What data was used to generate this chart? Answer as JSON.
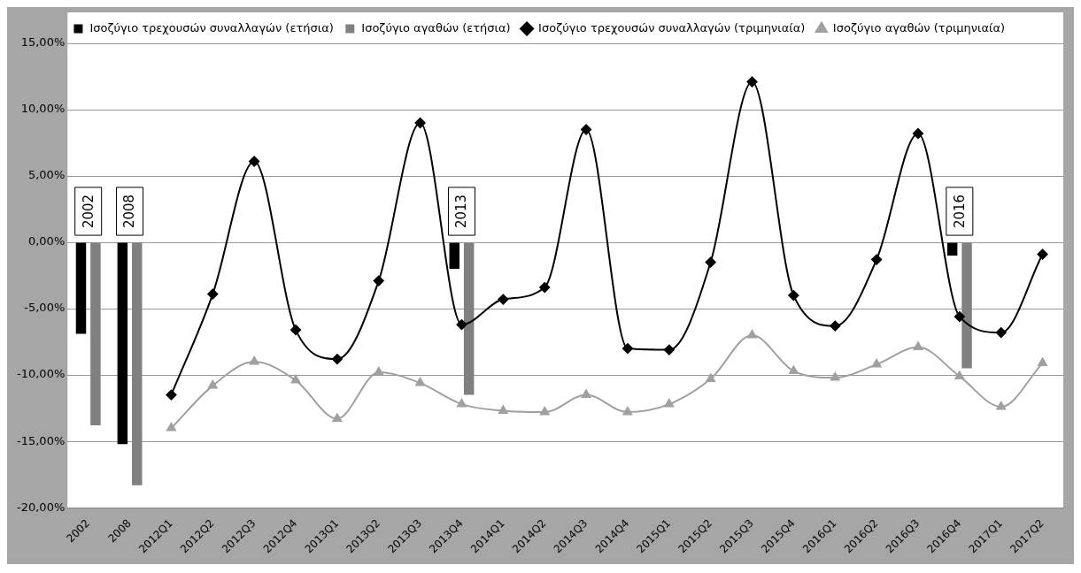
{
  "chart_data": {
    "type": "bar",
    "categories": [
      "2002",
      "2008",
      "2012Q1",
      "2012Q2",
      "2012Q3",
      "2012Q4",
      "2013Q1",
      "2013Q2",
      "2013Q3",
      "2013Q4",
      "2014Q1",
      "2014Q2",
      "2014Q3",
      "2014Q4",
      "2015Q1",
      "2015Q2",
      "2015Q3",
      "2015Q4",
      "2016Q1",
      "2016Q2",
      "2016Q3",
      "2016Q4",
      "2017Q1",
      "2017Q2"
    ],
    "series": [
      {
        "name": "Ισοζύγιο τρεχουσών συναλλαγών (ετήσια)",
        "color": "#000000",
        "values": [
          -6.9,
          -15.2,
          null,
          null,
          null,
          null,
          null,
          null,
          null,
          -2.0,
          null,
          null,
          null,
          null,
          null,
          null,
          null,
          null,
          null,
          null,
          null,
          -1.0,
          null,
          null
        ]
      },
      {
        "name": "Ισοζύγιο αγαθών (ετήσια)",
        "color": "#808080",
        "values": [
          -13.8,
          -18.3,
          null,
          null,
          null,
          null,
          null,
          null,
          null,
          -11.5,
          null,
          null,
          null,
          null,
          null,
          null,
          null,
          null,
          null,
          null,
          null,
          -9.5,
          null,
          null
        ]
      },
      {
        "name": "Ισοζύγιο τρεχουσών συναλλαγών (τριμηνιαία)",
        "type": "line",
        "marker": "diamond",
        "color": "#000000",
        "values": [
          null,
          null,
          -11.5,
          -3.9,
          6.1,
          -6.6,
          -8.8,
          -2.9,
          9.0,
          -6.2,
          -4.3,
          -3.4,
          8.5,
          -8.0,
          -8.1,
          -1.5,
          12.1,
          -4.0,
          -6.3,
          -1.3,
          8.2,
          -5.6,
          -6.8,
          -0.9
        ]
      },
      {
        "name": "Ισοζύγιο αγαθών (τριμηνιαία)",
        "type": "line",
        "marker": "triangle",
        "color": "#a0a0a0",
        "values": [
          null,
          null,
          -14.0,
          -10.8,
          -9.0,
          -10.4,
          -13.3,
          -9.8,
          -10.6,
          -12.2,
          -12.7,
          -12.8,
          -11.5,
          -12.8,
          -12.2,
          -10.3,
          -7.0,
          -9.7,
          -10.2,
          -9.2,
          -7.9,
          -10.1,
          -12.4,
          -9.1
        ]
      }
    ],
    "ylim": [
      -20,
      15
    ],
    "yticks": [
      {
        "value": -20,
        "label": "-20,00%"
      },
      {
        "value": -15,
        "label": "-15,00%"
      },
      {
        "value": -10,
        "label": "-10,00%"
      },
      {
        "value": -5,
        "label": "-5,00%"
      },
      {
        "value": 0,
        "label": "0,00%"
      },
      {
        "value": 5,
        "label": "5,00%"
      },
      {
        "value": 10,
        "label": "10,00%"
      },
      {
        "value": 15,
        "label": "15,00%"
      }
    ],
    "grid": "y",
    "legend": "top",
    "line_style": "solid",
    "annotations": [
      {
        "text": "2002",
        "x": "2002",
        "y": 0
      },
      {
        "text": "2008",
        "x": "2008",
        "y": 0
      },
      {
        "text": "2013",
        "x": "2013Q4",
        "y": 0
      },
      {
        "text": "2016",
        "x": "2016Q4",
        "y": 0
      }
    ]
  }
}
